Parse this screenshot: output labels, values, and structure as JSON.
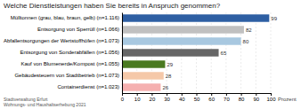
{
  "chart_data": {
    "type": "bar",
    "orientation": "horizontal",
    "title": "Welche Dienstleistungen haben Sie bereits in Anspruch genommen?",
    "categories": [
      "Mülltonnen (grau, blau, braun, gelb) (n=1.116)",
      "Entsorgung von Sperrüll (n=1.066)",
      "Abfallentsorgungen der Wertstoffhöfen (n=1.073)",
      "Entsorgung von Sonderabfällen (n=1.056)",
      "Kauf von Blumenerde/Kompost (n=1.055)",
      "Gebäudesteuern von Stadtbetrieb (n=1.073)",
      "Containerdienst (n=1.023)"
    ],
    "values": [
      99,
      82,
      80,
      65,
      29,
      28,
      26
    ],
    "colors": [
      "#2e5fa3",
      "#c0c0c0",
      "#a8c8e0",
      "#666666",
      "#4a7a20",
      "#f5c8a8",
      "#f5b0b0"
    ],
    "xlabel": "Prozent",
    "xlim": [
      0,
      100
    ],
    "xticks": [
      0,
      10,
      20,
      30,
      40,
      50,
      60,
      70,
      80,
      90,
      100
    ],
    "grid": true,
    "data_labels": true,
    "annotations": [
      "Stadtverwaltung Erfurt",
      "Wohnungs- und Haushaltserhebung 2021"
    ]
  }
}
